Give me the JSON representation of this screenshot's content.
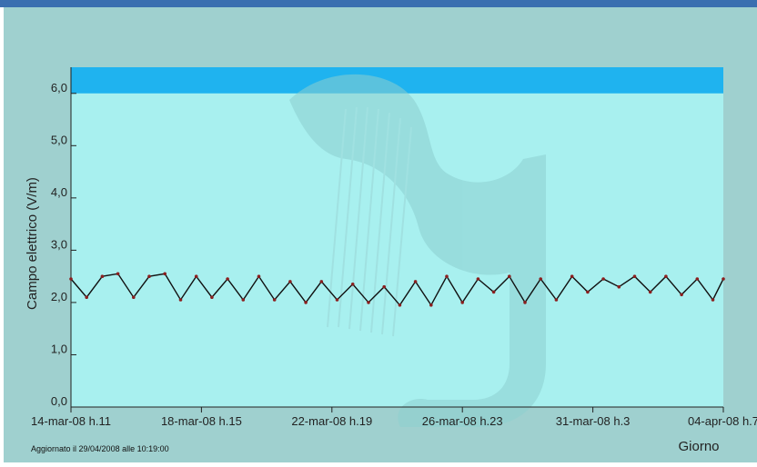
{
  "colors": {
    "window_border_top": "#3a6fb0",
    "panel_bg": "#9fd0cf",
    "plot_bg": "#a8f0ef",
    "limit_band": "#1fb3ef",
    "watermark": "#8ccfd0",
    "series_line": "#111111",
    "series_points": "#8b1f1f",
    "axis": "#222222"
  },
  "footer": {
    "updated_text": "Aggiornato il 29/04/2008 alle 10:19:00"
  },
  "watermark": {
    "icon": "harp-logo-icon"
  },
  "chart_data": {
    "type": "line",
    "ylabel": "Campo elettrico (V/m)",
    "xlabel": "Giorno",
    "ylim": [
      0,
      6.5
    ],
    "yticks": [
      "0,0",
      "1,0",
      "2,0",
      "3,0",
      "4,0",
      "5,0",
      "6,0"
    ],
    "ytick_values": [
      0,
      1,
      2,
      3,
      4,
      5,
      6
    ],
    "xlim": [
      "2008-03-14T11:00",
      "2008-04-04T07:00"
    ],
    "xticks": [
      "14-mar-08 h.11",
      "18-mar-08 h.15",
      "22-mar-08 h.19",
      "26-mar-08 h.23",
      "31-mar-08 h.3",
      "04-apr-08 h.7"
    ],
    "xtick_values": [
      "2008-03-14T11:00",
      "2008-03-18T15:00",
      "2008-03-22T19:00",
      "2008-03-26T23:00",
      "2008-03-31T03:00",
      "2008-04-04T07:00"
    ],
    "limit_band": {
      "from": 6.0,
      "to": 6.5
    },
    "grid": false,
    "series": [
      {
        "x": [
          "2008-03-14T11:00",
          "2008-03-14T23:00",
          "2008-03-15T11:00",
          "2008-03-15T23:00",
          "2008-03-16T11:00",
          "2008-03-16T23:00",
          "2008-03-17T11:00",
          "2008-03-17T23:00",
          "2008-03-18T11:00",
          "2008-03-18T23:00",
          "2008-03-19T11:00",
          "2008-03-19T23:00",
          "2008-03-20T11:00",
          "2008-03-20T23:00",
          "2008-03-21T11:00",
          "2008-03-21T23:00",
          "2008-03-22T11:00",
          "2008-03-22T23:00",
          "2008-03-23T11:00",
          "2008-03-23T23:00",
          "2008-03-24T11:00",
          "2008-03-24T23:00",
          "2008-03-25T11:00",
          "2008-03-25T23:00",
          "2008-03-26T11:00",
          "2008-03-26T23:00",
          "2008-03-27T11:00",
          "2008-03-27T23:00",
          "2008-03-28T11:00",
          "2008-03-28T23:00",
          "2008-03-29T11:00",
          "2008-03-29T23:00",
          "2008-03-30T11:00",
          "2008-03-30T23:00",
          "2008-03-31T11:00",
          "2008-03-31T23:00",
          "2008-04-01T11:00",
          "2008-04-01T23:00",
          "2008-04-02T11:00",
          "2008-04-02T23:00",
          "2008-04-03T11:00",
          "2008-04-03T23:00",
          "2008-04-04T07:00"
        ],
        "y": [
          2.45,
          2.1,
          2.5,
          2.55,
          2.1,
          2.5,
          2.55,
          2.05,
          2.5,
          2.1,
          2.45,
          2.05,
          2.5,
          2.05,
          2.4,
          2.0,
          2.4,
          2.05,
          2.35,
          2.0,
          2.3,
          1.95,
          2.4,
          1.95,
          2.5,
          2.0,
          2.45,
          2.2,
          2.5,
          2.0,
          2.45,
          2.05,
          2.5,
          2.2,
          2.45,
          2.3,
          2.5,
          2.2,
          2.5,
          2.15,
          2.45,
          2.05,
          2.45
        ]
      }
    ]
  }
}
